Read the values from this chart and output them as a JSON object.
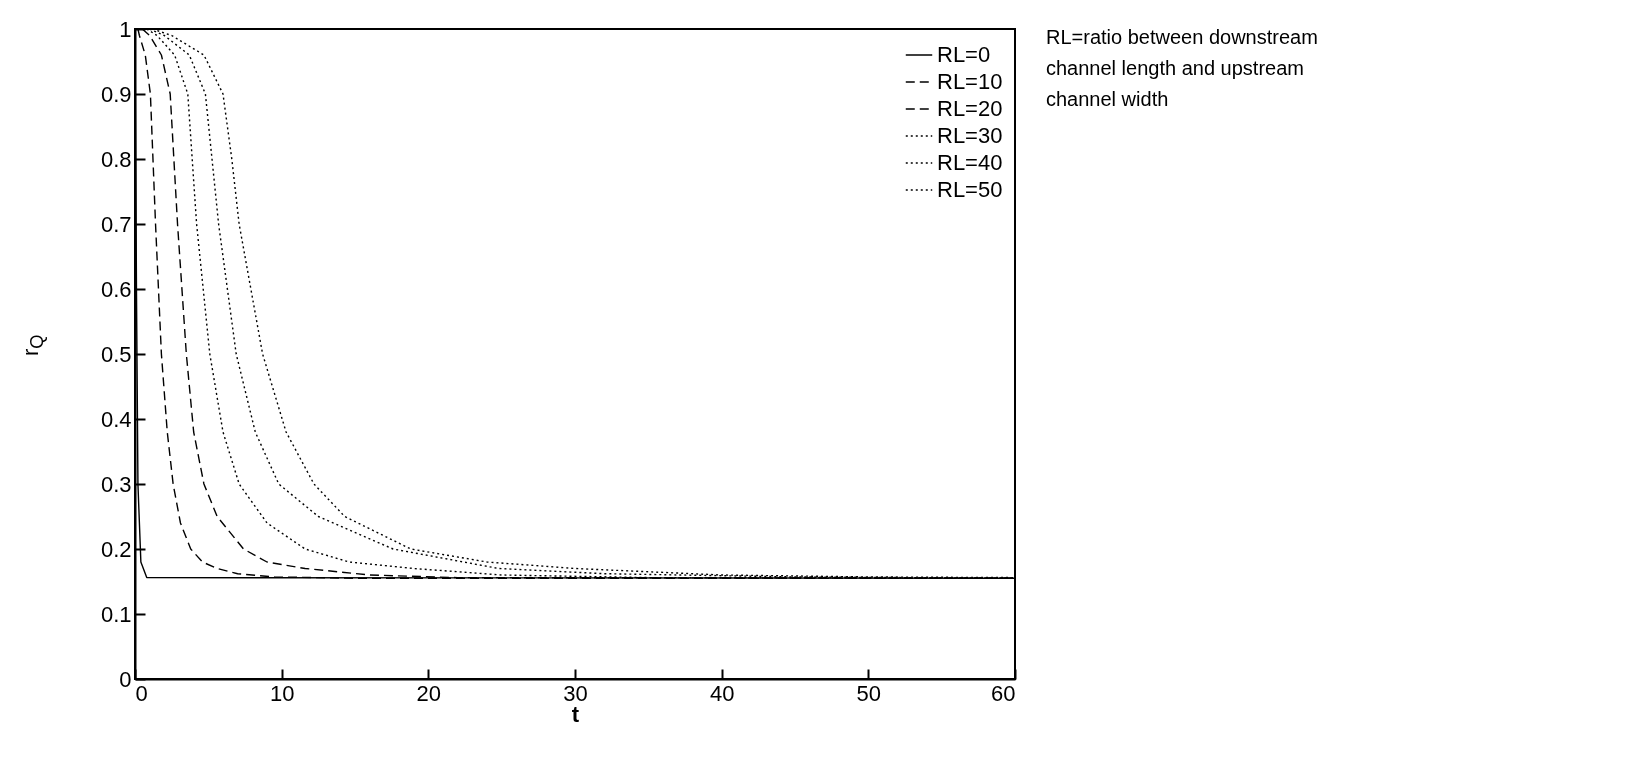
{
  "chart_data": {
    "type": "line",
    "xlabel": "t",
    "ylabel": "r$_{Q}$",
    "xlim": [
      0,
      60
    ],
    "xticks": [
      0,
      10,
      20,
      30,
      40,
      50,
      60
    ],
    "ylim": [
      0,
      1
    ],
    "yticks": [
      0,
      0.1,
      0.2,
      0.3,
      0.4,
      0.5,
      0.6,
      0.7,
      0.8,
      0.9,
      1
    ],
    "grid": false,
    "legend": "top right",
    "annotations": [
      "RL=ratio between downstream channel length and upstream channel width"
    ],
    "series": [
      {
        "name": "RL=0",
        "color": "#000000",
        "line_style": "solid",
        "x": [
          0,
          0.1,
          0.2,
          0.4,
          0.8,
          60
        ],
        "values": [
          1,
          0.6,
          0.3,
          0.18,
          0.156,
          0.155
        ]
      },
      {
        "name": "RL=10",
        "color": "#000000",
        "line_style": "dashed",
        "x": [
          0.2,
          0.3,
          0.7,
          1.05,
          1.4,
          1.8,
          2.2,
          2.6,
          3.1,
          3.8,
          4.6,
          5.6,
          7,
          9.5,
          15,
          60
        ],
        "values": [
          1,
          0.99,
          0.96,
          0.9,
          0.7,
          0.5,
          0.38,
          0.3,
          0.24,
          0.2,
          0.18,
          0.17,
          0.162,
          0.157,
          0.155,
          0.155
        ]
      },
      {
        "name": "RL=20",
        "color": "#000000",
        "line_style": "dashed",
        "x": [
          0.5,
          1,
          1.8,
          2.4,
          2.9,
          3.5,
          4,
          4.7,
          5.6,
          7.4,
          9,
          11.6,
          16,
          22,
          60
        ],
        "values": [
          1,
          0.99,
          0.96,
          0.9,
          0.7,
          0.5,
          0.38,
          0.3,
          0.25,
          0.2,
          0.18,
          0.17,
          0.16,
          0.156,
          0.155
        ]
      },
      {
        "name": "RL=30",
        "color": "#000000",
        "line_style": "dotted",
        "x": [
          0.8,
          1.5,
          2.7,
          3.6,
          4.2,
          5.1,
          6,
          7.1,
          9,
          11.6,
          14.6,
          19,
          25,
          35,
          60
        ],
        "values": [
          1,
          0.99,
          0.96,
          0.9,
          0.7,
          0.5,
          0.38,
          0.3,
          0.24,
          0.2,
          0.18,
          0.17,
          0.16,
          0.156,
          0.155
        ]
      },
      {
        "name": "RL=40",
        "color": "#000000",
        "line_style": "dotted",
        "x": [
          1,
          2,
          3.7,
          4.8,
          5.7,
          6.9,
          8.2,
          9.8,
          12.5,
          17.6,
          24.8,
          32,
          45,
          60
        ],
        "values": [
          1,
          0.99,
          0.96,
          0.9,
          0.7,
          0.5,
          0.38,
          0.3,
          0.25,
          0.2,
          0.17,
          0.162,
          0.157,
          0.155
        ]
      },
      {
        "name": "RL=50",
        "color": "#000000",
        "line_style": "dotted",
        "x": [
          1.2,
          2.5,
          4.7,
          6,
          6.6,
          7.1,
          8.7,
          10.3,
          12.2,
          14.3,
          18.8,
          24,
          30,
          40,
          50,
          60
        ],
        "values": [
          1,
          0.99,
          0.96,
          0.9,
          0.8,
          0.7,
          0.5,
          0.38,
          0.3,
          0.25,
          0.2,
          0.18,
          0.17,
          0.16,
          0.157,
          0.156
        ]
      }
    ]
  }
}
